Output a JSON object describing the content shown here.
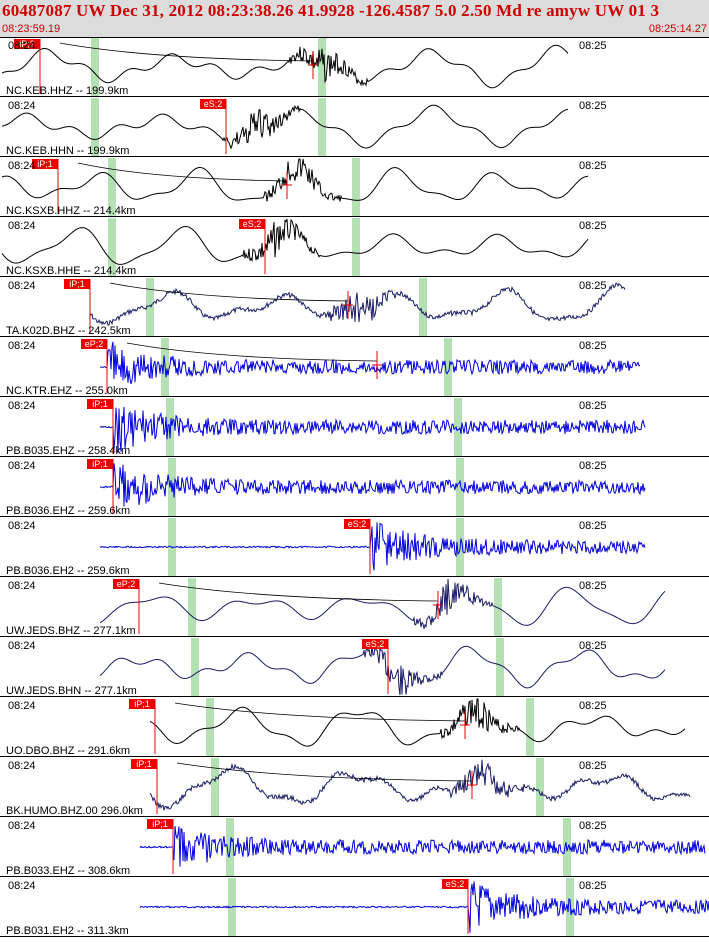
{
  "header": {
    "title": "60487087 UW Dec 31, 2012 08:23:38.26   41.9928 -126.4587  5.0 2.50 Md re amyw UW 01   3",
    "start_time": "08:23:59.19",
    "end_time": "08:25:14.27"
  },
  "colors": {
    "header_bg": "#dcdcdc",
    "header_text": "#cc0000",
    "trace_black": "#000000",
    "trace_navy": "#1a1a66",
    "trace_blue": "#0000dd",
    "pick_box": "#ee0000",
    "window_band": "#b4e0b4"
  },
  "traces": [
    {
      "label": "NC.KEB.HHZ -- 199.9km",
      "left_time": "08:24",
      "right_time": "08:25",
      "pick": "iP;2",
      "color": "black",
      "style": "smooth",
      "moveout": true
    },
    {
      "label": "NC.KEB.HHN -- 199.9km",
      "left_time": "08:24",
      "right_time": "08:25",
      "pick": "eS;2",
      "color": "black",
      "style": "smooth",
      "moveout": false
    },
    {
      "label": "NC.KSXB.HHZ -- 214.4km",
      "left_time": "08:24",
      "right_time": "08:25",
      "pick": "iP;1",
      "color": "black",
      "style": "smooth",
      "moveout": true
    },
    {
      "label": "NC.KSXB.HHE -- 214.4km",
      "left_time": "08:24",
      "right_time": "08:25",
      "pick": "eS;2",
      "color": "black",
      "style": "smooth",
      "moveout": false
    },
    {
      "label": "TA.K02D.BHZ -- 242.5km",
      "left_time": "08:24",
      "right_time": "08:25",
      "pick": "iP;1",
      "color": "navy",
      "style": "noisy",
      "moveout": true
    },
    {
      "label": "NC.KTR.EHZ -- 255.0km",
      "left_time": "08:24",
      "right_time": "08:25",
      "pick": "eP;2",
      "color": "blue",
      "style": "burst",
      "moveout": true
    },
    {
      "label": "PB.B035.EHZ -- 258.4km",
      "left_time": "08:24",
      "right_time": "08:25",
      "pick": "iP;1",
      "color": "blue",
      "style": "burst",
      "moveout": false
    },
    {
      "label": "PB.B036.EHZ -- 259.6km",
      "left_time": "08:24",
      "right_time": "08:25",
      "pick": "iP;1",
      "color": "blue",
      "style": "burst",
      "moveout": false
    },
    {
      "label": "PB.B036.EH2 -- 259.6km",
      "left_time": "08:24",
      "right_time": "08:25",
      "pick": "eS;2",
      "color": "blue",
      "style": "burst",
      "moveout": false
    },
    {
      "label": "UW.JEDS.BHZ -- 277.1km",
      "left_time": "08:24",
      "right_time": "08:25",
      "pick": "eP;2",
      "color": "navy",
      "style": "smooth",
      "moveout": true
    },
    {
      "label": "UW.JEDS.BHN -- 277.1km",
      "left_time": "08:24",
      "right_time": "08:25",
      "pick": "eS;2",
      "color": "navy",
      "style": "smooth",
      "moveout": false
    },
    {
      "label": "UO.DBO.BHZ -- 291.6km",
      "left_time": "08:24",
      "right_time": "08:25",
      "pick": "iP;1",
      "color": "black",
      "style": "smooth",
      "moveout": true
    },
    {
      "label": "BK.HUMO.BHZ.00 296.0km",
      "left_time": "08:24",
      "right_time": "08:25",
      "pick": "iP;1",
      "color": "navy",
      "style": "noisy",
      "moveout": true
    },
    {
      "label": "PB.B033.EHZ -- 308.6km",
      "left_time": "08:24",
      "right_time": "08:25",
      "pick": "iP;1",
      "color": "blue",
      "style": "burst",
      "moveout": false
    },
    {
      "label": "PB.B031.EH2 -- 311.3km",
      "left_time": "08:24",
      "right_time": "08:25",
      "pick": "eS;2",
      "color": "blue",
      "style": "burst",
      "moveout": false
    }
  ]
}
